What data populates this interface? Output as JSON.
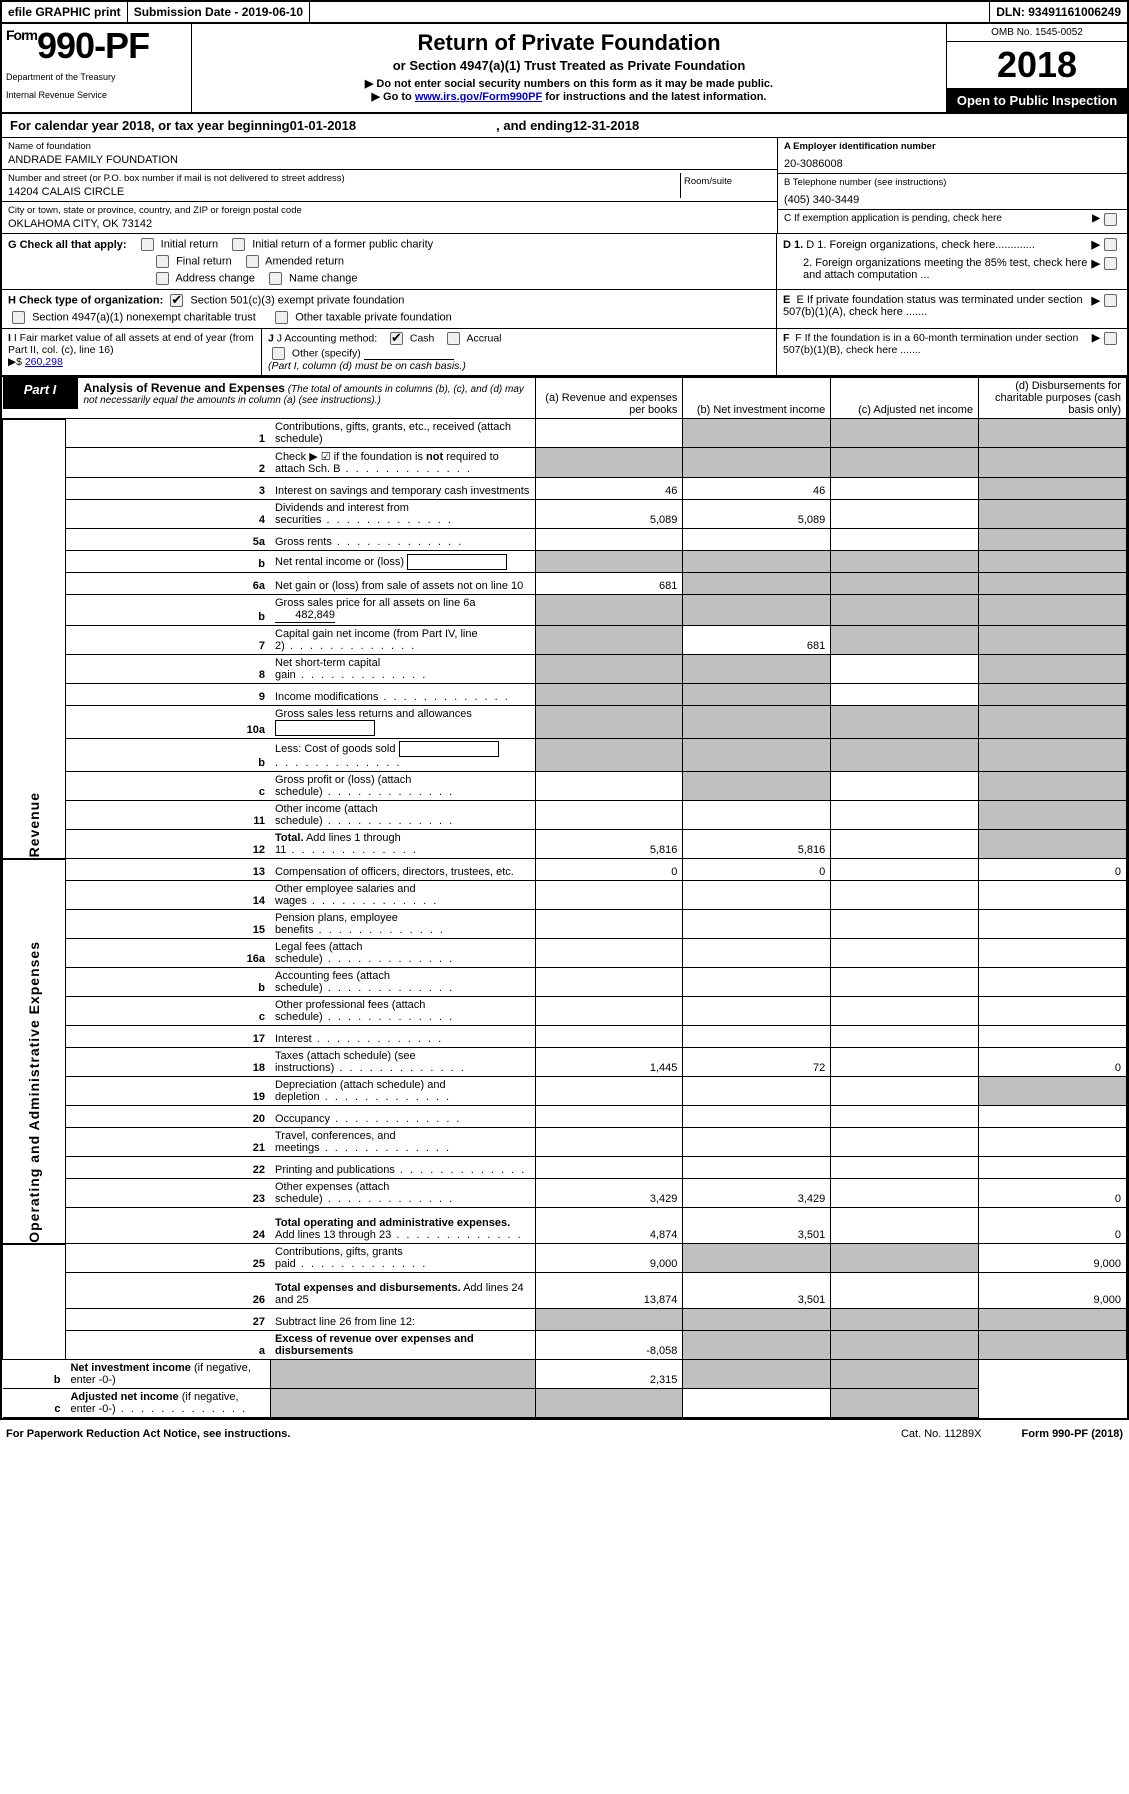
{
  "top": {
    "efile": "efile GRAPHIC print",
    "subdate_label": "Submission Date - ",
    "subdate": "2019-06-10",
    "dln_label": "DLN: ",
    "dln": "93491161006249"
  },
  "header": {
    "form_prefix": "Form",
    "form_no": "990-PF",
    "dept1": "Department of the Treasury",
    "dept2": "Internal Revenue Service",
    "title": "Return of Private Foundation",
    "subtitle": "or Section 4947(a)(1) Trust Treated as Private Foundation",
    "notice1": "▶ Do not enter social security numbers on this form as it may be made public.",
    "notice2_pre": "▶ Go to ",
    "notice2_link": "www.irs.gov/Form990PF",
    "notice2_post": " for instructions and the latest information.",
    "omb": "OMB No. 1545-0052",
    "year": "2018",
    "open": "Open to Public Inspection"
  },
  "calendar": {
    "pre": "For calendar year 2018, or tax year beginning ",
    "begin": "01-01-2018",
    "mid": " , and ending ",
    "end": "12-31-2018"
  },
  "info": {
    "name_label": "Name of foundation",
    "name": "ANDRADE FAMILY FOUNDATION",
    "ein_label": "A Employer identification number",
    "ein": "20-3086008",
    "street_label": "Number and street (or P.O. box number if mail is not delivered to street address)",
    "street": "14204 CALAIS CIRCLE",
    "room_label": "Room/suite",
    "phone_label": "B Telephone number (see instructions)",
    "phone": "(405) 340-3449",
    "city_label": "City or town, state or province, country, and ZIP or foreign postal code",
    "city": "OKLAHOMA CITY, OK  73142",
    "c_label": "C If exemption application is pending, check here"
  },
  "checks": {
    "g_label": "G Check all that apply:",
    "initial": "Initial return",
    "initial_former": "Initial return of a former public charity",
    "final": "Final return",
    "amended": "Amended return",
    "address": "Address change",
    "name": "Name change",
    "d1": "D 1. Foreign organizations, check here.............",
    "d2": "2. Foreign organizations meeting the 85% test, check here and attach computation ...",
    "h_label": "H Check type of organization:",
    "h501": "Section 501(c)(3) exempt private foundation",
    "h4947": "Section 4947(a)(1) nonexempt charitable trust",
    "hother": "Other taxable private foundation",
    "e_label": "E  If private foundation status was terminated under section 507(b)(1)(A), check here .......",
    "i_label": "I Fair market value of all assets at end of year (from Part II, col. (c), line 16)",
    "i_arrow": "▶$",
    "i_value": "260,298",
    "j_label": "J Accounting method:",
    "j_cash": "Cash",
    "j_accrual": "Accrual",
    "j_other": "Other (specify)",
    "j_note": "(Part I, column (d) must be on cash basis.)",
    "f_label": "F  If the foundation is in a 60-month termination under section 507(b)(1)(B), check here ......."
  },
  "part1": {
    "part": "Part I",
    "title": "Analysis of Revenue and Expenses",
    "note": " (The total of amounts in columns (b), (c), and (d) may not necessarily equal the amounts in column (a) (see instructions).)",
    "col_a": "(a)   Revenue and expenses per books",
    "col_b": "(b)   Net investment income",
    "col_c": "(c)   Adjusted net income",
    "col_d": "(d)   Disbursements for charitable purposes (cash basis only)"
  },
  "side": {
    "revenue": "Revenue",
    "opexp": "Operating and Administrative Expenses"
  },
  "rows": [
    {
      "n": "1",
      "desc": "Contributions, gifts, grants, etc., received (attach schedule)",
      "a": "",
      "b": "grey",
      "c": "grey",
      "d": "grey"
    },
    {
      "n": "2",
      "desc": "Check ▶ ☑ if the foundation is <b>not</b> required to attach Sch. B",
      "a": "grey",
      "b": "grey",
      "c": "grey",
      "d": "grey",
      "dots": true
    },
    {
      "n": "3",
      "desc": "Interest on savings and temporary cash investments",
      "a": "46",
      "b": "46",
      "c": "",
      "d": "grey"
    },
    {
      "n": "4",
      "desc": "Dividends and interest from securities",
      "a": "5,089",
      "b": "5,089",
      "c": "",
      "d": "grey",
      "dots": true
    },
    {
      "n": "5a",
      "desc": "Gross rents",
      "a": "",
      "b": "",
      "c": "",
      "d": "grey",
      "dots": true
    },
    {
      "n": "b",
      "desc": "Net rental income or (loss)",
      "a": "grey",
      "b": "grey",
      "c": "grey",
      "d": "grey",
      "inline": true
    },
    {
      "n": "6a",
      "desc": "Net gain or (loss) from sale of assets not on line 10",
      "a": "681",
      "b": "grey",
      "c": "grey",
      "d": "grey"
    },
    {
      "n": "b",
      "desc": "Gross sales price for all assets on line 6a",
      "a": "grey",
      "b": "grey",
      "c": "grey",
      "d": "grey",
      "inline_val": "482,849"
    },
    {
      "n": "7",
      "desc": "Capital gain net income (from Part IV, line 2)",
      "a": "grey",
      "b": "681",
      "c": "grey",
      "d": "grey",
      "dots": true
    },
    {
      "n": "8",
      "desc": "Net short-term capital gain",
      "a": "grey",
      "b": "grey",
      "c": "",
      "d": "grey",
      "dots": true
    },
    {
      "n": "9",
      "desc": "Income modifications",
      "a": "grey",
      "b": "grey",
      "c": "",
      "d": "grey",
      "dots": true
    },
    {
      "n": "10a",
      "desc": "Gross sales less returns and allowances",
      "a": "grey",
      "b": "grey",
      "c": "grey",
      "d": "grey",
      "inline": true
    },
    {
      "n": "b",
      "desc": "Less: Cost of goods sold",
      "a": "grey",
      "b": "grey",
      "c": "grey",
      "d": "grey",
      "dots": true,
      "inline": true
    },
    {
      "n": "c",
      "desc": "Gross profit or (loss) (attach schedule)",
      "a": "",
      "b": "grey",
      "c": "",
      "d": "grey",
      "dots": true
    },
    {
      "n": "11",
      "desc": "Other income (attach schedule)",
      "a": "",
      "b": "",
      "c": "",
      "d": "grey",
      "dots": true
    },
    {
      "n": "12",
      "desc": "<b>Total.</b> Add lines 1 through 11",
      "a": "5,816",
      "b": "5,816",
      "c": "",
      "d": "grey",
      "dots": true
    },
    {
      "n": "13",
      "desc": "Compensation of officers, directors, trustees, etc.",
      "a": "0",
      "b": "0",
      "c": "",
      "d": "0"
    },
    {
      "n": "14",
      "desc": "Other employee salaries and wages",
      "a": "",
      "b": "",
      "c": "",
      "d": "",
      "dots": true
    },
    {
      "n": "15",
      "desc": "Pension plans, employee benefits",
      "a": "",
      "b": "",
      "c": "",
      "d": "",
      "dots": true
    },
    {
      "n": "16a",
      "desc": "Legal fees (attach schedule)",
      "a": "",
      "b": "",
      "c": "",
      "d": "",
      "dots": true
    },
    {
      "n": "b",
      "desc": "Accounting fees (attach schedule)",
      "a": "",
      "b": "",
      "c": "",
      "d": "",
      "dots": true
    },
    {
      "n": "c",
      "desc": "Other professional fees (attach schedule)",
      "a": "",
      "b": "",
      "c": "",
      "d": "",
      "dots": true
    },
    {
      "n": "17",
      "desc": "Interest",
      "a": "",
      "b": "",
      "c": "",
      "d": "",
      "dots": true
    },
    {
      "n": "18",
      "desc": "Taxes (attach schedule) (see instructions)",
      "a": "1,445",
      "b": "72",
      "c": "",
      "d": "0",
      "dots": true
    },
    {
      "n": "19",
      "desc": "Depreciation (attach schedule) and depletion",
      "a": "",
      "b": "",
      "c": "",
      "d": "grey",
      "dots": true
    },
    {
      "n": "20",
      "desc": "Occupancy",
      "a": "",
      "b": "",
      "c": "",
      "d": "",
      "dots": true
    },
    {
      "n": "21",
      "desc": "Travel, conferences, and meetings",
      "a": "",
      "b": "",
      "c": "",
      "d": "",
      "dots": true
    },
    {
      "n": "22",
      "desc": "Printing and publications",
      "a": "",
      "b": "",
      "c": "",
      "d": "",
      "dots": true
    },
    {
      "n": "23",
      "desc": "Other expenses (attach schedule)",
      "a": "3,429",
      "b": "3,429",
      "c": "",
      "d": "0",
      "dots": true
    },
    {
      "n": "24",
      "desc": "<b>Total operating and administrative expenses.</b> Add lines 13 through 23",
      "a": "4,874",
      "b": "3,501",
      "c": "",
      "d": "0",
      "dots": true,
      "tall": true
    },
    {
      "n": "25",
      "desc": "Contributions, gifts, grants paid",
      "a": "9,000",
      "b": "grey",
      "c": "grey",
      "d": "9,000",
      "dots": true
    },
    {
      "n": "26",
      "desc": "<b>Total expenses and disbursements.</b> Add lines 24 and 25",
      "a": "13,874",
      "b": "3,501",
      "c": "",
      "d": "9,000",
      "tall": true
    },
    {
      "n": "27",
      "desc": "Subtract line 26 from line 12:",
      "a": "grey",
      "b": "grey",
      "c": "grey",
      "d": "grey"
    },
    {
      "n": "a",
      "desc": "<b>Excess of revenue over expenses and disbursements</b>",
      "a": "-8,058",
      "b": "grey",
      "c": "grey",
      "d": "grey"
    },
    {
      "n": "b",
      "desc": "<b>Net investment income</b> (if negative, enter -0-)",
      "a": "grey",
      "b": "2,315",
      "c": "grey",
      "d": "grey"
    },
    {
      "n": "c",
      "desc": "<b>Adjusted net income</b> (if negative, enter -0-)",
      "a": "grey",
      "b": "grey",
      "c": "",
      "d": "grey",
      "dots": true
    }
  ],
  "footer": {
    "left": "For Paperwork Reduction Act Notice, see instructions.",
    "cat": "Cat. No. 11289X",
    "form": "Form 990-PF (2018)"
  }
}
